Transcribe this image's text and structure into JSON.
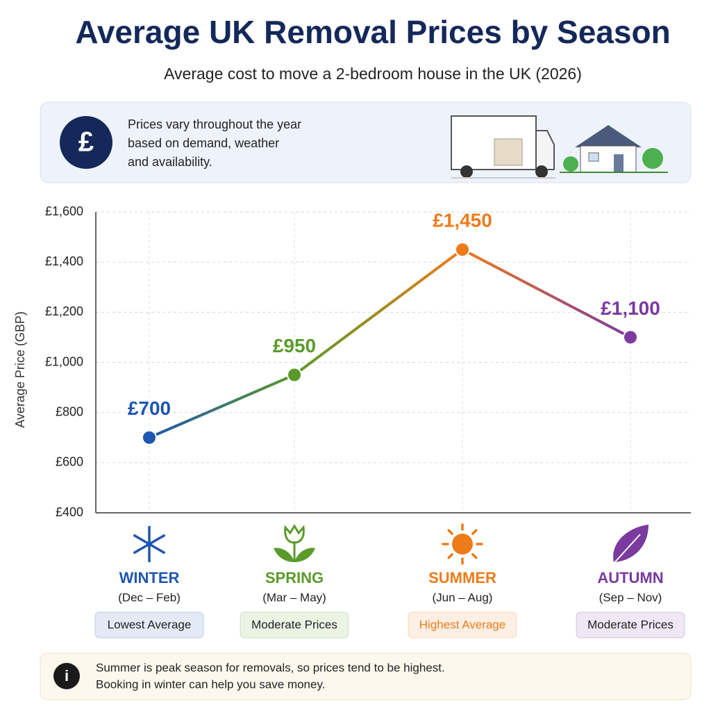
{
  "title": "Average UK Removal Prices by Season",
  "subtitle": "Average cost to move a 2-bedroom house in the UK (2026)",
  "intro": [
    "Prices vary throughout the year",
    "based on demand, weather",
    "and availability."
  ],
  "chart_data": {
    "type": "line",
    "y_label": "Average Price (GBP)",
    "categories": [
      "WINTER",
      "SPRING",
      "SUMMER",
      "AUTUMN"
    ],
    "periods": [
      "(Dec – Feb)",
      "(Mar – May)",
      "(Jun – Aug)",
      "(Sep – Nov)"
    ],
    "badges": [
      "Lowest Average",
      "Moderate Prices",
      "Highest Average",
      "Moderate Prices"
    ],
    "values": [
      700,
      950,
      1450,
      1100
    ],
    "value_labels": [
      "£700",
      "£950",
      "£1,450",
      "£1,100"
    ],
    "colors": [
      "#1f56b0",
      "#5a9a2a",
      "#ee7b1a",
      "#7a3aa0"
    ],
    "ylim": [
      400,
      1600
    ],
    "yticks": [
      {
        "value": 400,
        "label": "£400"
      },
      {
        "value": 600,
        "label": "£600"
      },
      {
        "value": 800,
        "label": "£800"
      },
      {
        "value": 1000,
        "label": "£1,000"
      },
      {
        "value": 1200,
        "label": "£1,200"
      },
      {
        "value": 1400,
        "label": "£1,400"
      },
      {
        "value": 1600,
        "label": "£1,600"
      }
    ],
    "grid": true
  },
  "note": [
    "Summer is peak season for removals, so prices tend to be highest.",
    "Booking in winter can help you save money."
  ]
}
